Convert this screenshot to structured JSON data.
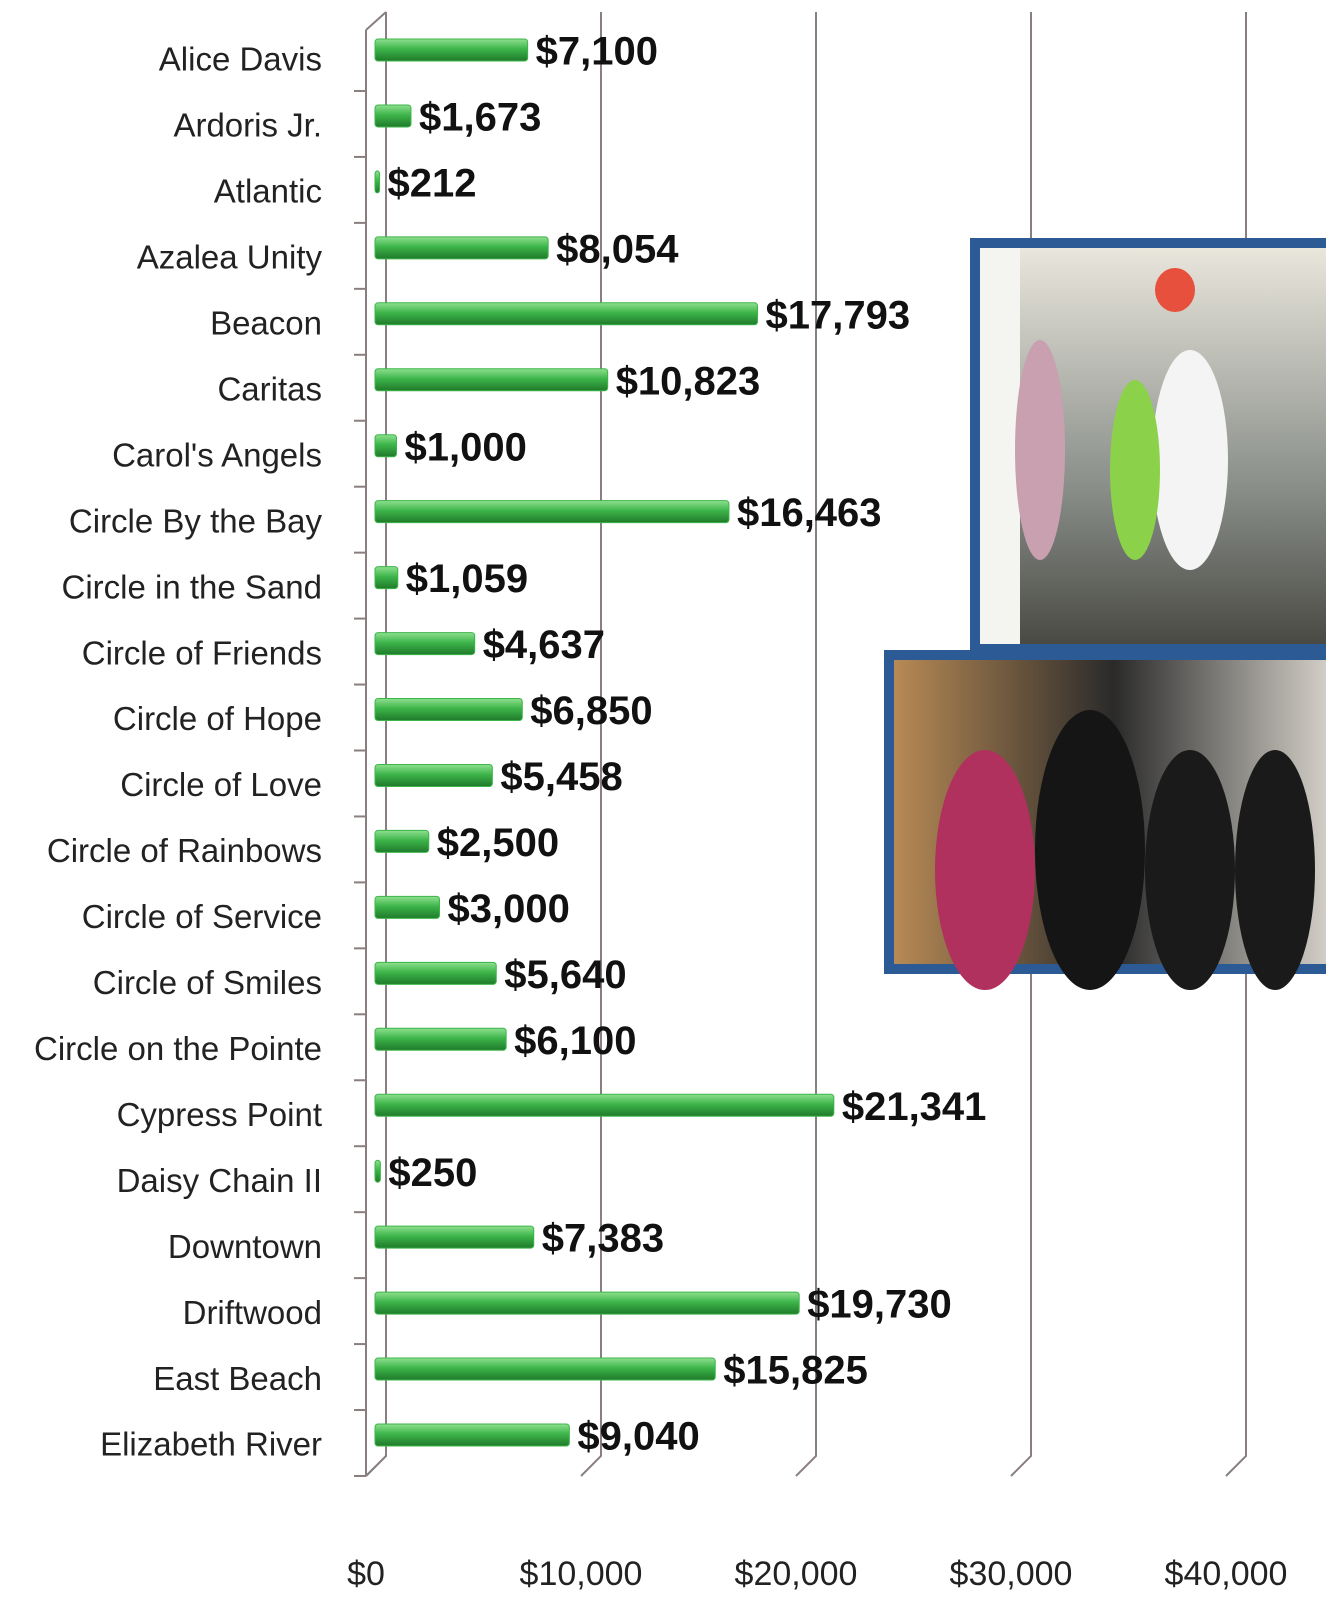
{
  "chart_data": {
    "type": "bar",
    "orientation": "horizontal",
    "categories": [
      "Alice Davis",
      "Ardoris Jr.",
      "Atlantic",
      "Azalea Unity",
      "Beacon",
      "Caritas",
      "Carol's Angels",
      "Circle By the Bay",
      "Circle in the Sand",
      "Circle of Friends",
      "Circle of Hope",
      "Circle of Love",
      "Circle of Rainbows",
      "Circle of Service",
      "Circle of Smiles",
      "Circle on the Pointe",
      "Cypress Point",
      "Daisy Chain II",
      "Downtown",
      "Driftwood",
      "East Beach",
      "Elizabeth River"
    ],
    "values": [
      7100,
      1673,
      212,
      8054,
      17793,
      10823,
      1000,
      16463,
      1059,
      4637,
      6850,
      5458,
      2500,
      3000,
      5640,
      6100,
      21341,
      250,
      7383,
      19730,
      15825,
      9040
    ],
    "value_labels": [
      "$7,100",
      "$1,673",
      "$212",
      "$8,054",
      "$17,793",
      "$10,823",
      "$1,000",
      "$16,463",
      "$1,059",
      "$4,637",
      "$6,850",
      "$5,458",
      "$2,500",
      "$3,000",
      "$5,640",
      "$6,100",
      "$21,341",
      "$250",
      "$7,383",
      "$19,730",
      "$15,825",
      "$9,040"
    ],
    "color": "#3db54a",
    "xlim": [
      0,
      40000
    ],
    "xticks": [
      {
        "value": 0,
        "label": "$0"
      },
      {
        "value": 10000,
        "label": "$10,000"
      },
      {
        "value": 20000,
        "label": "$20,000"
      },
      {
        "value": 30000,
        "label": "$30,000"
      },
      {
        "value": 40000,
        "label": "$40,000"
      }
    ],
    "grid": true
  }
}
